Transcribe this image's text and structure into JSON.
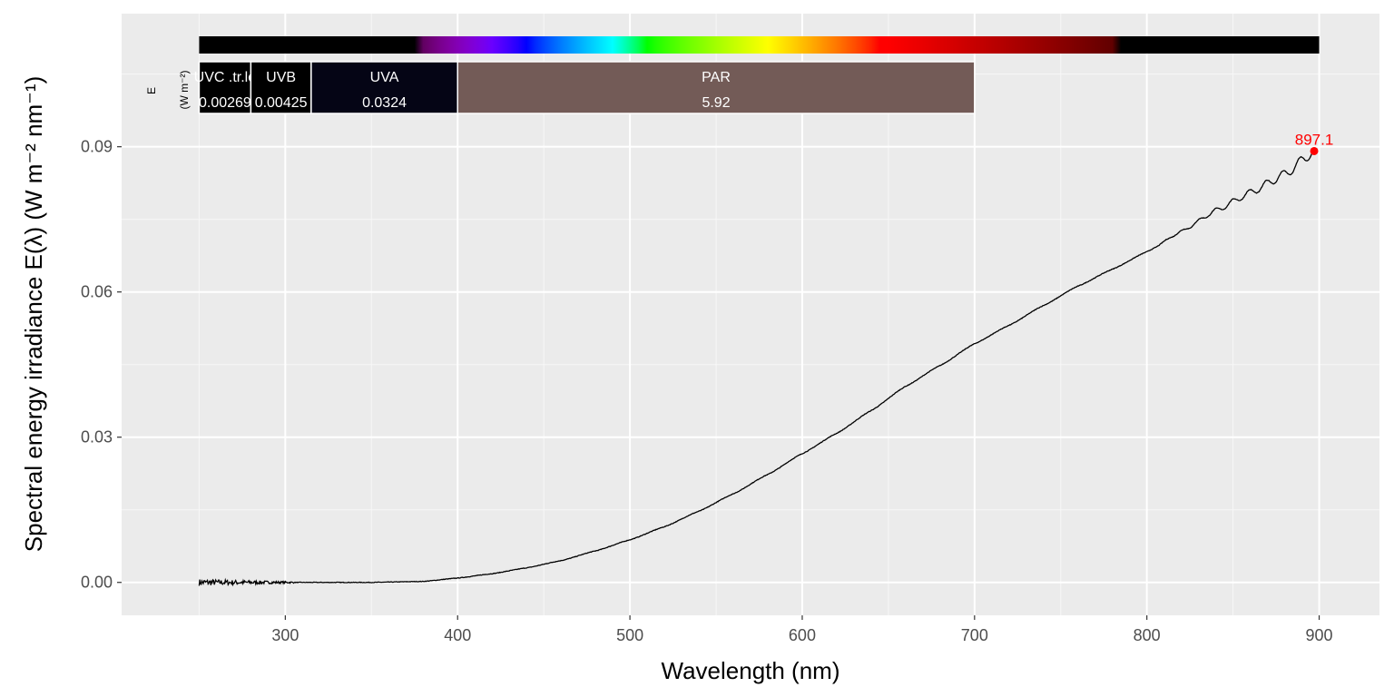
{
  "chart_data": {
    "type": "line",
    "xlabel": "Wavelength (nm)",
    "ylabel": "Spectral energy irradiance E(λ) (W m⁻² nm⁻¹)",
    "xlim": [
      205,
      935
    ],
    "ylim": [
      -0.0068,
      0.1175
    ],
    "x_ticks": [
      300,
      400,
      500,
      600,
      700,
      800,
      900
    ],
    "x_tick_labels": [
      "300",
      "400",
      "500",
      "600",
      "700",
      "800",
      "900"
    ],
    "y_ticks": [
      0.0,
      0.03,
      0.06,
      0.09
    ],
    "y_tick_labels": [
      "0.00",
      "0.03",
      "0.06",
      "0.09"
    ],
    "grid": true,
    "line_color": "#000000",
    "background": "#ebebeb",
    "series": [
      {
        "x": [
          250,
          260,
          270,
          280,
          300,
          320,
          350,
          380,
          400,
          420,
          440,
          460,
          480,
          500,
          520,
          540,
          560,
          580,
          600,
          620,
          640,
          660,
          680,
          700,
          720,
          740,
          760,
          780,
          800,
          820,
          840,
          860,
          880,
          897.1
        ],
        "values": [
          0.0,
          0.0,
          0.0,
          0.0,
          0.0,
          0.0,
          0.0,
          0.0002,
          0.0009,
          0.0018,
          0.003,
          0.0045,
          0.0065,
          0.0088,
          0.0115,
          0.0147,
          0.0183,
          0.0223,
          0.0266,
          0.0308,
          0.0355,
          0.0405,
          0.0448,
          0.0493,
          0.0531,
          0.0572,
          0.0612,
          0.0647,
          0.0683,
          0.0725,
          0.0768,
          0.0805,
          0.0843,
          0.0891
        ]
      }
    ],
    "peak": {
      "x": 897.1,
      "y": 0.0891,
      "label": "897.1",
      "color": "#ff0000"
    },
    "color_bar": {
      "from": 250,
      "to": 900
    },
    "summary_label": {
      "line1": "E",
      "line2": "(W m⁻²)"
    },
    "bands": [
      {
        "name": "UVC .tr.lo",
        "value": "0.00269",
        "from": 250,
        "to": 280,
        "color": "#000000"
      },
      {
        "name": "UVB",
        "value": "0.00425",
        "from": 280,
        "to": 315,
        "color": "#000000"
      },
      {
        "name": "UVA",
        "value": "0.0324",
        "from": 315,
        "to": 400,
        "color": "#050515"
      },
      {
        "name": "PAR",
        "value": "5.92",
        "from": 400,
        "to": 700,
        "color": "#735b57"
      }
    ]
  }
}
